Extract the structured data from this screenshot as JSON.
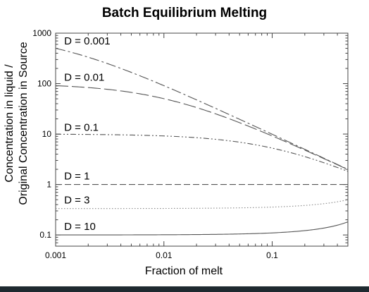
{
  "chart_data": {
    "type": "line",
    "title": "Batch Equilibrium Melting",
    "xlabel": "Fraction of melt",
    "ylabel_line1": "Concentration in liquid /",
    "ylabel_line2": "Original Concentration in Source",
    "x_scale": "log",
    "y_scale": "log",
    "xlim": [
      0.001,
      0.5
    ],
    "ylim": [
      0.06,
      1000
    ],
    "x_ticks": [
      {
        "value": 0.001,
        "label": "0.001"
      },
      {
        "value": 0.01,
        "label": "0.01"
      },
      {
        "value": 0.1,
        "label": "0.1"
      }
    ],
    "y_ticks": [
      {
        "value": 0.1,
        "label": "0.1"
      },
      {
        "value": 1,
        "label": "1"
      },
      {
        "value": 10,
        "label": "10"
      },
      {
        "value": 100,
        "label": "100"
      },
      {
        "value": 1000,
        "label": "1000"
      }
    ],
    "grid": false,
    "legend": "none",
    "series": [
      {
        "label": "D = 0.001",
        "D": 0.001,
        "dash": "14 4 3 4",
        "color": "#555555",
        "label_at": [
          0.0012,
          600
        ]
      },
      {
        "label": "D = 0.01",
        "D": 0.01,
        "dash": "18 5",
        "color": "#555555",
        "label_at": [
          0.0012,
          114
        ]
      },
      {
        "label": "D = 0.1",
        "D": 0.1,
        "dash": "8 3 2 3 2 3",
        "color": "#555555",
        "label_at": [
          0.0012,
          11.5
        ]
      },
      {
        "label": "D = 1",
        "D": 1,
        "dash": "9 4",
        "color": "#555555",
        "label_at": [
          0.0012,
          1.25
        ]
      },
      {
        "label": "D = 3",
        "D": 3,
        "dash": "1.5 2.5",
        "color": "#888888",
        "label_at": [
          0.0012,
          0.42
        ]
      },
      {
        "label": "D = 10",
        "D": 10,
        "dash": "",
        "color": "#555555",
        "label_at": [
          0.0012,
          0.125
        ]
      }
    ]
  }
}
